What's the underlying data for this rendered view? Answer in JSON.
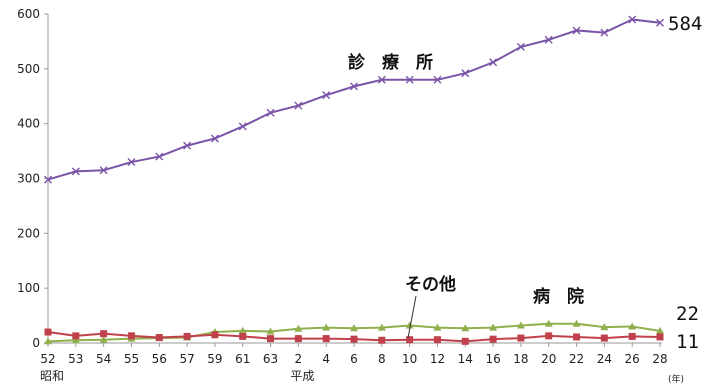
{
  "chart_data": {
    "type": "line",
    "x": [
      52,
      53,
      54,
      55,
      56,
      57,
      59,
      61,
      63,
      2,
      4,
      6,
      8,
      10,
      12,
      14,
      16,
      18,
      20,
      22,
      24,
      26,
      28
    ],
    "x_tick_labels": [
      "52",
      "53",
      "54",
      "55",
      "56",
      "57",
      "59",
      "61",
      "63",
      "2",
      "4",
      "6",
      "8",
      "10",
      "12",
      "14",
      "16",
      "18",
      "20",
      "22",
      "24",
      "26",
      "28"
    ],
    "era_labels": [
      {
        "text": "昭和",
        "at_index": 0
      },
      {
        "text": "平成",
        "at_index": 9
      }
    ],
    "x_unit": "(年)",
    "y_ticks": [
      0,
      100,
      200,
      300,
      400,
      500,
      600
    ],
    "ylim": [
      0,
      600
    ],
    "title": "",
    "xlabel": "",
    "ylabel": "",
    "series": [
      {
        "name": "診　療　所",
        "color": "#7b54a8",
        "marker": "x",
        "values": [
          298,
          313,
          315,
          330,
          340,
          360,
          373,
          395,
          420,
          433,
          452,
          468,
          480,
          480,
          480,
          492,
          512,
          540,
          553,
          570,
          566,
          590,
          584
        ],
        "end_label": "584"
      },
      {
        "name": "病　院",
        "color": "#8fb04c",
        "marker": "triangle",
        "values": [
          3,
          5,
          6,
          8,
          9,
          10,
          20,
          22,
          21,
          26,
          28,
          27,
          28,
          32,
          28,
          27,
          28,
          32,
          35,
          35,
          29,
          30,
          22
        ],
        "end_label": "22"
      },
      {
        "name": "その他",
        "color": "#c0414b",
        "marker": "square",
        "values": [
          20,
          13,
          17,
          13,
          10,
          12,
          15,
          12,
          8,
          8,
          8,
          7,
          5,
          6,
          6,
          3,
          7,
          9,
          13,
          11,
          9,
          12,
          11
        ],
        "end_label": "11"
      }
    ],
    "grid": false,
    "legend": "inline labels"
  }
}
